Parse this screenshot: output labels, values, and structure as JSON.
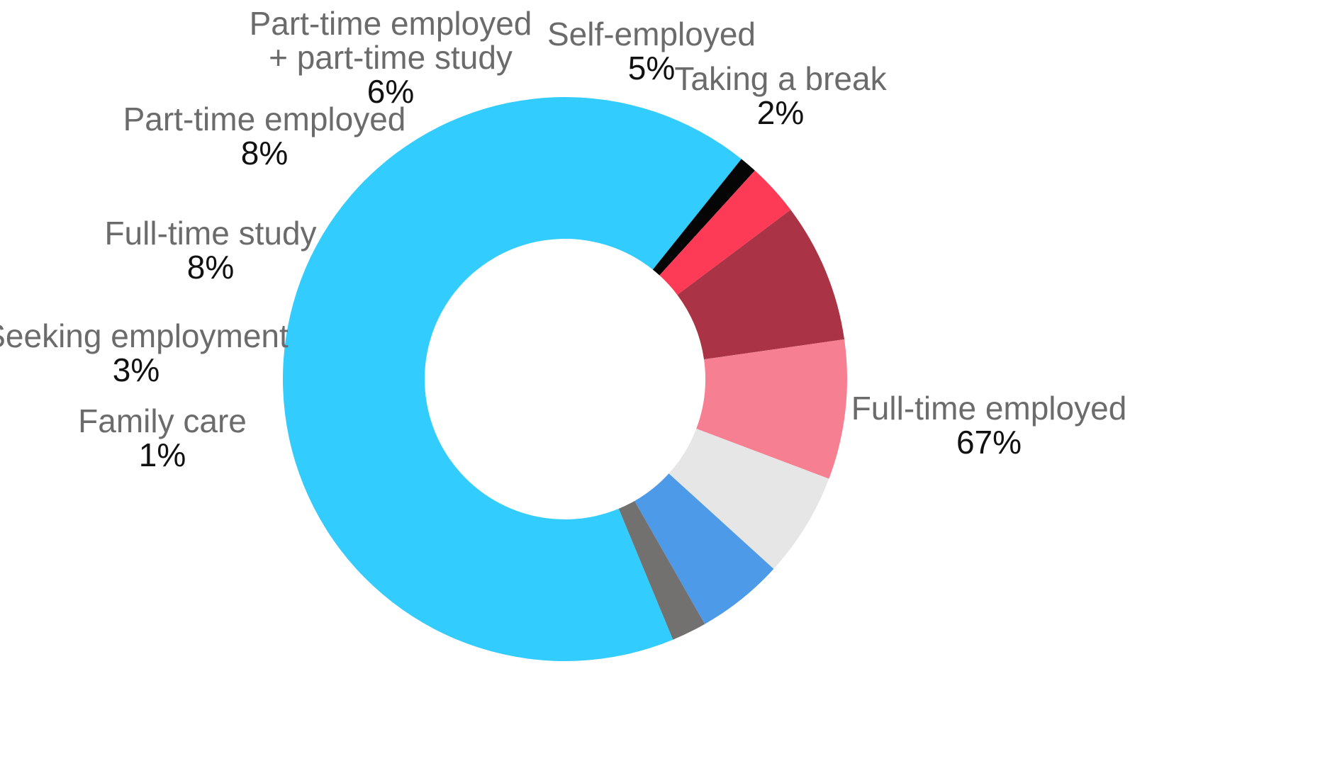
{
  "chart_data": {
    "type": "pie",
    "title": "",
    "donut": true,
    "start_slice": "Full-time employed",
    "categories": [
      "Full-time employed",
      "Family care",
      "Seeking employment",
      "Full-time study",
      "Part-time employed",
      "Part-time employed + part-time study",
      "Self-employed",
      "Taking a break"
    ],
    "values": [
      67,
      1,
      3,
      8,
      8,
      6,
      5,
      2
    ],
    "labels": [
      {
        "lines": [
          "Full-time employed"
        ],
        "value_text": "67%"
      },
      {
        "lines": [
          "Family care"
        ],
        "value_text": "1%"
      },
      {
        "lines": [
          "Seeking employment"
        ],
        "value_text": "3%"
      },
      {
        "lines": [
          "Full-time study"
        ],
        "value_text": "8%"
      },
      {
        "lines": [
          "Part-time employed"
        ],
        "value_text": "8%"
      },
      {
        "lines": [
          "Part-time employed",
          "+ part-time study"
        ],
        "value_text": "6%"
      },
      {
        "lines": [
          "Self-employed"
        ],
        "value_text": "5%"
      },
      {
        "lines": [
          "Taking a break"
        ],
        "value_text": "2%"
      }
    ],
    "colors": [
      "#33ccff",
      "#050505",
      "#fe3b56",
      "#aa3446",
      "#f67f91",
      "#e6e6e6",
      "#4d9ae8",
      "#737070"
    ],
    "legend": "none"
  }
}
